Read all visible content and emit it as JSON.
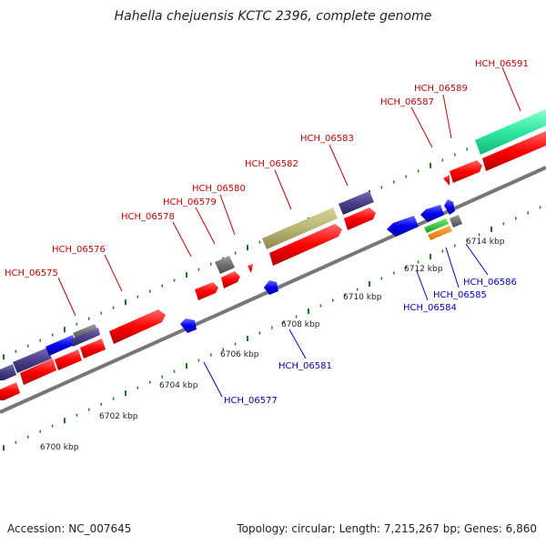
{
  "title": "Hahella chejuensis KCTC 2396, complete genome",
  "footer": {
    "accession": "Accession: NC_007645",
    "summary": "Topology: circular; Length: 7,215,267 bp; Genes: 6,860"
  },
  "colors": {
    "forward_label": "#cc0000",
    "reverse_label": "#0000cc",
    "tick": "#1a7a1a",
    "axis": "#777777"
  },
  "scale_labels": [
    "6700 kbp",
    "6702 kbp",
    "6704 kbp",
    "6706 kbp",
    "6708 kbp",
    "6710 kbp",
    "6712 kbp",
    "6714 kbp"
  ],
  "forward_genes": [
    "HCH_06575",
    "HCH_06576",
    "HCH_06578",
    "HCH_06579",
    "HCH_06580",
    "HCH_06582",
    "HCH_06583",
    "HCH_06587",
    "HCH_06589",
    "HCH_06591"
  ],
  "reverse_genes": [
    "HCH_06577",
    "HCH_06581",
    "HCH_06584",
    "HCH_06585",
    "HCH_06586"
  ]
}
